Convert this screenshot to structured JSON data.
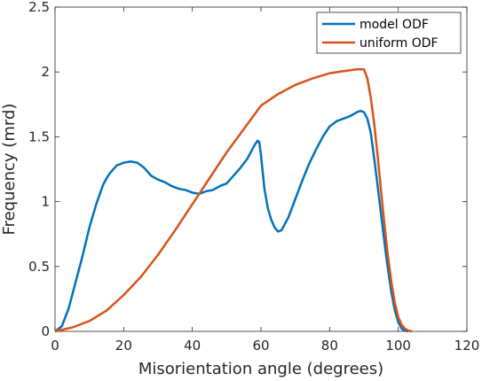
{
  "chart_data": {
    "type": "line",
    "title": "",
    "xlabel": "Misorientation angle (degrees)",
    "ylabel": "Frequency (mrd)",
    "xlim": [
      0,
      120
    ],
    "ylim": [
      0,
      2.5
    ],
    "xticks": [
      0,
      20,
      40,
      60,
      80,
      100,
      120
    ],
    "yticks": [
      0,
      0.5,
      1,
      1.5,
      2,
      2.5
    ],
    "ytick_labels": [
      "0",
      "0.5",
      "1",
      "1.5",
      "2",
      "2.5"
    ],
    "grid": false,
    "legend_position": "top-right",
    "series": [
      {
        "name": "model ODF",
        "color": "#0072BD",
        "x": [
          0,
          2,
          4,
          6,
          8,
          10,
          12,
          14,
          15,
          16,
          18,
          20,
          22,
          24,
          26,
          28,
          30,
          32,
          34,
          36,
          38,
          40,
          42,
          44,
          46,
          48,
          50,
          52,
          54,
          56,
          58,
          59,
          59.5,
          60,
          61,
          62,
          63,
          64,
          65,
          66,
          68,
          70,
          72,
          74,
          76,
          78,
          80,
          82,
          84,
          86,
          88,
          89,
          90,
          91,
          92,
          93,
          94,
          95,
          96,
          97,
          98,
          99,
          100,
          101,
          102,
          103
        ],
        "y": [
          0,
          0.04,
          0.18,
          0.38,
          0.58,
          0.8,
          0.98,
          1.13,
          1.18,
          1.22,
          1.28,
          1.3,
          1.31,
          1.3,
          1.26,
          1.2,
          1.17,
          1.15,
          1.12,
          1.1,
          1.09,
          1.07,
          1.06,
          1.08,
          1.09,
          1.12,
          1.14,
          1.2,
          1.26,
          1.33,
          1.43,
          1.47,
          1.46,
          1.36,
          1.1,
          0.95,
          0.86,
          0.8,
          0.77,
          0.78,
          0.88,
          1.02,
          1.16,
          1.29,
          1.4,
          1.5,
          1.58,
          1.62,
          1.64,
          1.66,
          1.69,
          1.7,
          1.69,
          1.64,
          1.53,
          1.33,
          1.12,
          0.9,
          0.68,
          0.48,
          0.3,
          0.16,
          0.07,
          0.02,
          0.005,
          0
        ]
      },
      {
        "name": "uniform ODF",
        "color": "#D95319",
        "x": [
          0,
          5,
          10,
          15,
          20,
          25,
          30,
          35,
          40,
          45,
          50,
          55,
          60,
          65,
          70,
          75,
          80,
          85,
          88,
          90,
          91,
          92,
          93,
          94,
          95,
          96,
          97,
          98,
          99,
          100,
          101,
          102,
          103,
          104
        ],
        "y": [
          0,
          0.03,
          0.08,
          0.16,
          0.28,
          0.42,
          0.59,
          0.78,
          0.98,
          1.18,
          1.38,
          1.56,
          1.74,
          1.83,
          1.9,
          1.95,
          1.99,
          2.01,
          2.02,
          2.02,
          1.95,
          1.8,
          1.6,
          1.35,
          1.08,
          0.82,
          0.58,
          0.38,
          0.22,
          0.11,
          0.05,
          0.02,
          0.005,
          0
        ]
      }
    ]
  }
}
